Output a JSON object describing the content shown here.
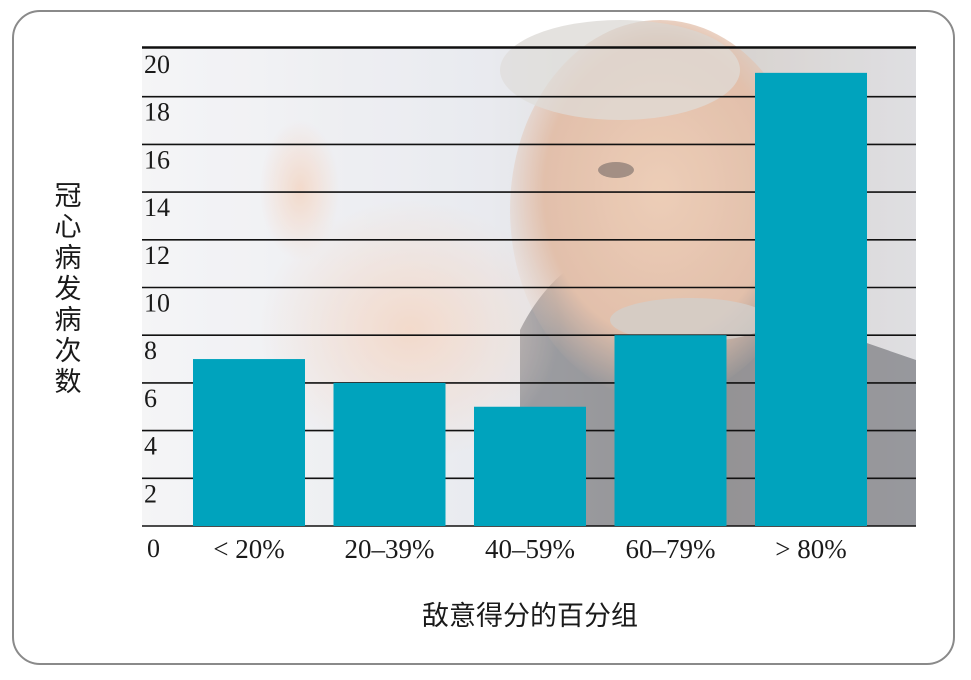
{
  "chart_data": {
    "type": "bar",
    "categories": [
      "< 20%",
      "20–39%",
      "40–59%",
      "60–79%",
      "> 80%"
    ],
    "values": [
      7,
      6,
      5,
      8,
      19
    ],
    "xlabel": "敌意得分的百分组",
    "ylabel": "冠心病发病次数",
    "ylim": [
      0,
      20
    ],
    "yticks": [
      0,
      2,
      4,
      6,
      8,
      10,
      12,
      14,
      16,
      18,
      20
    ],
    "grid": true,
    "bar_color": "#00a3bd",
    "background": "photo of a man pointing at the viewer"
  }
}
